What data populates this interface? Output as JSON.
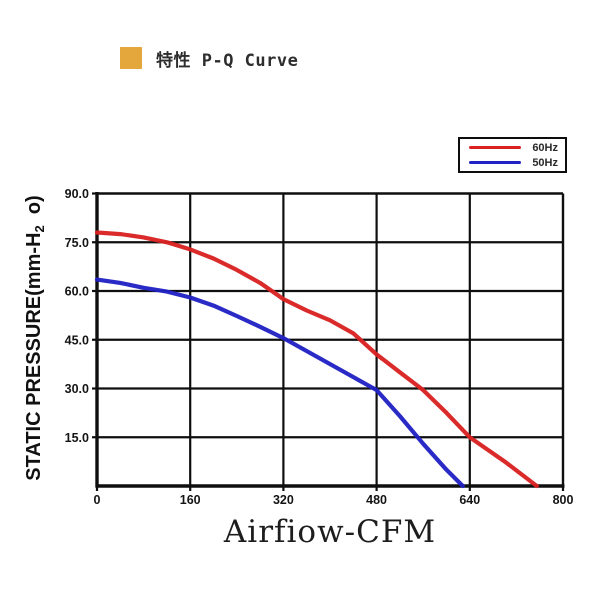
{
  "header": {
    "title": "特性 P-Q Curve",
    "bullet_color": "#e4a73c"
  },
  "legend": {
    "items": [
      {
        "label": "60Hz",
        "color": "#d92121"
      },
      {
        "label": "50Hz",
        "color": "#2121c4"
      }
    ]
  },
  "chart_data": {
    "type": "line",
    "title": "特性 P-Q Curve",
    "xlabel": "Airfiow-CFM",
    "ylabel": "STATIC PRESSURE(mm-H2 o)",
    "ylabel_parts": {
      "prefix": "STATIC PRESSURE(mm-H",
      "subscript": "2",
      "suffix": "  o)"
    },
    "xlim": [
      0,
      800
    ],
    "ylim": [
      0,
      90
    ],
    "x_ticks": [
      0,
      160,
      320,
      480,
      640,
      800
    ],
    "x_tick_labels": [
      "0",
      "160",
      "320",
      "480",
      "640",
      "800"
    ],
    "y_ticks": [
      15,
      30,
      45,
      60,
      75,
      90
    ],
    "y_tick_labels": [
      "15.0",
      "30.0",
      "45.0",
      "60.0",
      "75.0",
      "90.0"
    ],
    "grid": true,
    "grid_color": "#0f0f0f",
    "legend_position": "top-right",
    "series": [
      {
        "name": "60Hz",
        "color": "#d92121",
        "x": [
          0,
          40,
          80,
          120,
          160,
          200,
          240,
          280,
          300,
          320,
          360,
          400,
          440,
          480,
          520,
          560,
          600,
          640,
          700,
          755
        ],
        "y": [
          78,
          77.5,
          76.5,
          75,
          72.8,
          70,
          66.5,
          62.5,
          60,
          57.5,
          54,
          51,
          47,
          40.5,
          35,
          29.5,
          22.5,
          15,
          7.5,
          0
        ]
      },
      {
        "name": "50Hz",
        "color": "#2121c4",
        "x": [
          0,
          40,
          80,
          120,
          160,
          200,
          240,
          280,
          320,
          360,
          400,
          440,
          480,
          520,
          560,
          600,
          628
        ],
        "y": [
          63.5,
          62.5,
          61,
          59.8,
          58,
          55.5,
          52.3,
          49,
          45.5,
          41.5,
          37.5,
          33.5,
          29.5,
          21.5,
          13,
          5,
          0
        ]
      }
    ]
  }
}
